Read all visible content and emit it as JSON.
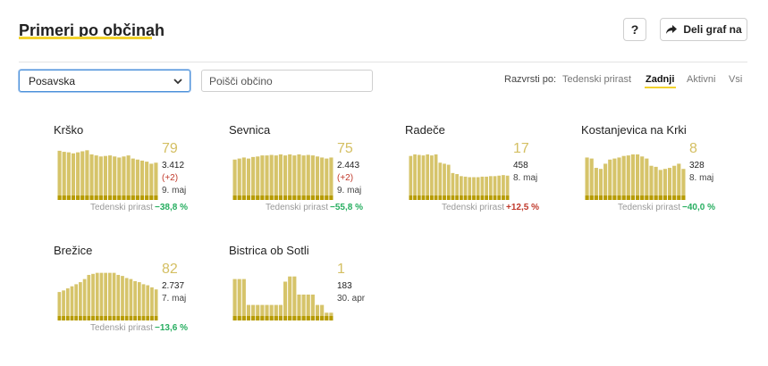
{
  "header": {
    "title": "Primeri po občinah",
    "help_label": "?",
    "share_label": "Deli graf na"
  },
  "filters": {
    "region_selected": "Posavska",
    "search_placeholder": "Poišči občino",
    "sort_label": "Razvrsti po:",
    "sort_options": [
      "Tedenski prirast",
      "Zadnji",
      "Aktivni",
      "Vsi"
    ],
    "sort_active": "Zadnji"
  },
  "colors": {
    "bar_light": "#d6c46a",
    "bar_dark": "#b69b00",
    "accent": "#f2d22c",
    "negative_growth": "#27ae60",
    "positive_growth": "#c0392b"
  },
  "growth_label": "Tedenski prirast",
  "municipalities": [
    {
      "name": "Krško",
      "active": "79",
      "total": "3.412",
      "delta": "(+2)",
      "date": "9. maj",
      "growth": "−38,8 %",
      "growth_sign": "neg",
      "bars": [
        95,
        93,
        92,
        90,
        92,
        94,
        96,
        88,
        86,
        84,
        85,
        86,
        84,
        82,
        84,
        86,
        80,
        78,
        76,
        74,
        70,
        72
      ],
      "dark": [
        0,
        0,
        0,
        0,
        0,
        0,
        0,
        0,
        0,
        0,
        0,
        0,
        0,
        0,
        0,
        0,
        0,
        0,
        0,
        0,
        0,
        0
      ]
    },
    {
      "name": "Sevnica",
      "active": "75",
      "total": "2.443",
      "delta": "(+2)",
      "date": "9. maj",
      "growth": "−55,8 %",
      "growth_sign": "neg",
      "bars": [
        78,
        80,
        82,
        80,
        83,
        84,
        86,
        86,
        87,
        86,
        88,
        86,
        88,
        86,
        88,
        86,
        87,
        86,
        84,
        82,
        80,
        82
      ],
      "dark": [
        0,
        0,
        0,
        0,
        0,
        0,
        0,
        0,
        0,
        0,
        0,
        0,
        0,
        0,
        0,
        0,
        0,
        0,
        0,
        0,
        0,
        0
      ]
    },
    {
      "name": "Radeče",
      "active": "17",
      "total": "458",
      "delta": "",
      "date": "8. maj",
      "growth": "+12,5 %",
      "growth_sign": "pos",
      "bars": [
        85,
        88,
        87,
        86,
        88,
        86,
        88,
        72,
        70,
        68,
        52,
        50,
        46,
        45,
        44,
        44,
        44,
        45,
        45,
        46,
        46,
        47,
        48,
        47
      ],
      "dark": [
        0,
        0,
        0,
        0,
        0,
        0,
        0,
        0,
        0,
        0,
        0,
        0,
        0,
        0,
        0,
        0,
        0,
        0,
        0,
        0,
        0,
        0,
        0,
        0
      ]
    },
    {
      "name": "Kostanjevica na Krki",
      "active": "8",
      "total": "328",
      "delta": "",
      "date": "8. maj",
      "growth": "−40,0 %",
      "growth_sign": "neg",
      "bars": [
        82,
        80,
        62,
        60,
        70,
        78,
        80,
        82,
        85,
        86,
        88,
        88,
        84,
        80,
        66,
        64,
        58,
        60,
        62,
        66,
        70,
        60
      ],
      "dark": [
        0,
        0,
        0,
        0,
        0,
        0,
        0,
        0,
        0,
        0,
        0,
        0,
        0,
        0,
        0,
        0,
        0,
        0,
        0,
        0,
        0,
        0
      ]
    },
    {
      "name": "Brežice",
      "active": "82",
      "total": "2.737",
      "delta": "",
      "date": "7. maj",
      "growth": "−13,6 %",
      "growth_sign": "neg",
      "bars": [
        55,
        58,
        62,
        66,
        70,
        74,
        80,
        88,
        90,
        92,
        92,
        92,
        92,
        92,
        88,
        86,
        82,
        80,
        76,
        74,
        70,
        68,
        64,
        60
      ],
      "dark": [
        0,
        0,
        0,
        0,
        0,
        0,
        0,
        0,
        0,
        0,
        0,
        0,
        0,
        0,
        0,
        0,
        0,
        0,
        0,
        0,
        0,
        0,
        0,
        0
      ]
    },
    {
      "name": "Bistrica ob Sotli",
      "active": "1",
      "total": "183",
      "delta": "",
      "date": "30. apr",
      "growth": "",
      "growth_sign": "",
      "bars": [
        80,
        80,
        80,
        30,
        30,
        30,
        30,
        30,
        30,
        30,
        30,
        75,
        85,
        85,
        50,
        50,
        50,
        50,
        30,
        30,
        15,
        15
      ],
      "dark": [
        0,
        0,
        0,
        0,
        0,
        0,
        0,
        0,
        0,
        0,
        0,
        0,
        0,
        0,
        0,
        0,
        0,
        0,
        0,
        0,
        0,
        0
      ]
    }
  ]
}
